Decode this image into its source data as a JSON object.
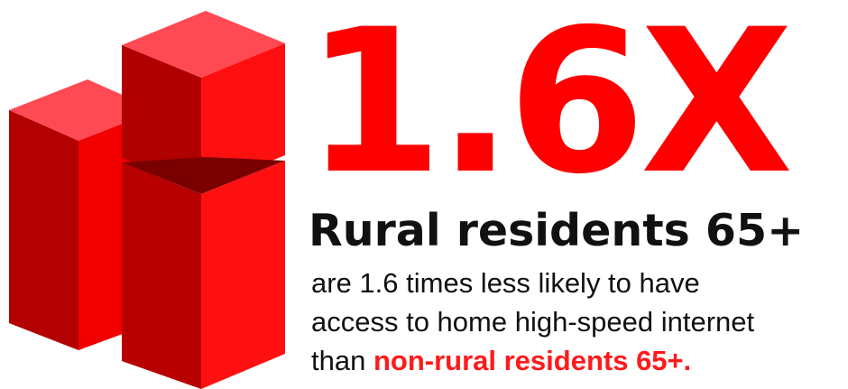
{
  "stat": "1.6X",
  "headline": "Rural residents 65+",
  "description": {
    "line1": "are 1.6 times less likely to have",
    "line2": "access to home high-speed internet",
    "line3_prefix": "than ",
    "line3_highlight": "non-rural residents 65+."
  },
  "colors": {
    "accent": "#ff0000",
    "block_top": "#ff4a54",
    "block_left": "#b30000",
    "block_right": "#ff1010",
    "text": "#111111"
  },
  "graphic": "stacked-red-blocks-icon"
}
